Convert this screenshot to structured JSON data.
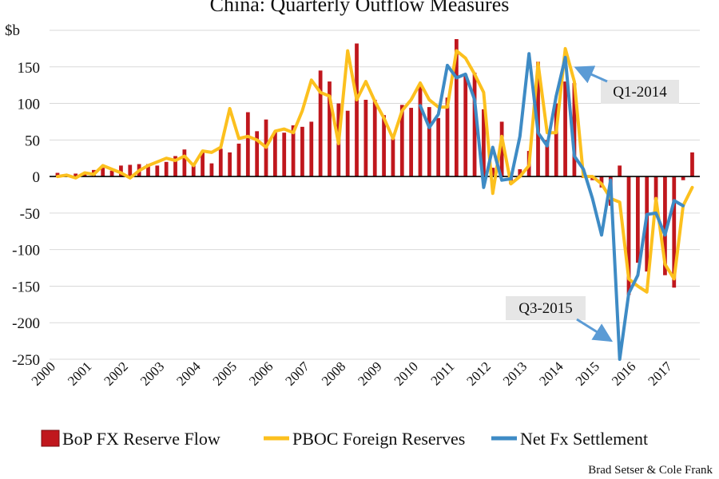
{
  "chart_data": {
    "type": "bar",
    "title": "China: Quarterly Outflow Measures",
    "ylabel": "$b",
    "ylim": [
      -250,
      200
    ],
    "yticks": [
      -250,
      -200,
      -150,
      -100,
      -50,
      0,
      50,
      100,
      150
    ],
    "x_start_year": 2000,
    "x_year_labels": [
      "2000",
      "2001",
      "2002",
      "2003",
      "2004",
      "2005",
      "2006",
      "2007",
      "2008",
      "2009",
      "2010",
      "2011",
      "2012",
      "2013",
      "2014",
      "2015",
      "2016",
      "2017"
    ],
    "grid": true,
    "legend_position": "bottom",
    "credit": "Brad Setser & Cole Frank",
    "annotations": [
      {
        "text": "Q1-2014",
        "quarter": "2014Q1",
        "value": 163
      },
      {
        "text": "Q3-2015",
        "quarter": "2015Q3",
        "value": -250
      }
    ],
    "colors": {
      "bop": "#c0171d",
      "pboc": "#fcc01e",
      "netfx": "#3e8bc5",
      "grid": "#d9d9d9",
      "annotation_box": "#e6e6e6",
      "arrow": "#5b9bd5"
    },
    "series": [
      {
        "name": "BoP FX Reserve Flow",
        "kind": "bar",
        "start": "2000Q1",
        "values": [
          5,
          3,
          4,
          5,
          9,
          12,
          8,
          15,
          16,
          17,
          17,
          15,
          20,
          28,
          37,
          16,
          35,
          18,
          38,
          33,
          45,
          88,
          62,
          78,
          62,
          60,
          70,
          68,
          75,
          145,
          130,
          100,
          90,
          182,
          105,
          105,
          84,
          52,
          98,
          94,
          125,
          95,
          80,
          108,
          188,
          140,
          142,
          92,
          12,
          75,
          -10,
          10,
          35,
          157,
          50,
          100,
          130,
          128,
          -2,
          -5,
          -15,
          -40,
          15,
          -162,
          -118,
          -130,
          -32,
          -135,
          -152,
          -5,
          33
        ]
      },
      {
        "name": "PBOC Foreign Reserves",
        "kind": "line",
        "start": "2000Q1",
        "values": [
          0,
          2,
          -2,
          5,
          3,
          15,
          10,
          5,
          -2,
          8,
          15,
          20,
          25,
          22,
          28,
          15,
          35,
          33,
          40,
          93,
          52,
          55,
          50,
          40,
          62,
          65,
          60,
          90,
          132,
          115,
          110,
          45,
          172,
          105,
          130,
          103,
          80,
          52,
          90,
          105,
          128,
          105,
          95,
          95,
          172,
          162,
          140,
          115,
          -23,
          55,
          -10,
          0,
          15,
          155,
          60,
          60,
          175,
          130,
          0,
          0,
          -10,
          -30,
          -35,
          -140,
          -150,
          -158,
          -30,
          -120,
          -140,
          -40,
          -15
        ]
      },
      {
        "name": "Net Fx Settlement",
        "kind": "line",
        "start": "2010Q1",
        "values": [
          97,
          67,
          85,
          152,
          135,
          140,
          105,
          -15,
          40,
          -5,
          -3,
          55,
          168,
          60,
          42,
          110,
          163,
          28,
          10,
          -30,
          -80,
          -5,
          -250,
          -160,
          -135,
          -52,
          -50,
          -80,
          -33,
          -40
        ]
      }
    ]
  }
}
